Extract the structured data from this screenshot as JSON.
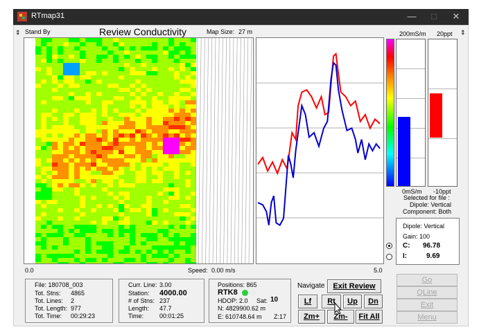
{
  "window": {
    "title": "RTmap31",
    "minimize": "—",
    "maximize": "□",
    "close": "✕"
  },
  "header": {
    "status": "Stand By",
    "view_title": "Review Conductivity",
    "map_size_label": "Map Size:",
    "map_size_value": "27 m"
  },
  "scale_bar": {
    "left": "0.0",
    "speed_label": "Speed:",
    "speed_value": "0.00 m/s",
    "right": "5.0"
  },
  "meters": {
    "conductivity_top": "200mS/m",
    "inphase_top": "20ppt",
    "conductivity_bottom": "0mS/m",
    "inphase_bottom": "-10ppt",
    "conductivity_level": 0.47,
    "inphase_level_top": 0.63,
    "inphase_level_bottom": 0.33,
    "conductivity_bar_color": "#0000ff",
    "inphase_bar_color": "#ff0000"
  },
  "selection": {
    "line1": "Selected for file :",
    "line2": "Dipole: Vertical",
    "line3": "Component: Both"
  },
  "readout": {
    "dipole": "Dipole: Vertical",
    "gain": "Gain:  100",
    "c_label": "C:",
    "c_value": "96.78",
    "i_label": "I:",
    "i_value": "9.69"
  },
  "file_info": {
    "file": "File: 180708_003",
    "stns_label": "Tot. Stns:",
    "stns_value": "4865",
    "lines_label": "Tot. Lines:",
    "lines_value": "2",
    "length_label": "Tot. Length:",
    "length_value": "977",
    "time_label": "Tot. Time:",
    "time_value": "00:29:23"
  },
  "line_info": {
    "curr_label": "Curr. Line:",
    "curr_value": "3.00",
    "station_label": "Station:",
    "station_value": "4000.00",
    "nstns_label": "# of Stns:",
    "nstns_value": "237",
    "length_label": "Length:",
    "length_value": "47.7",
    "time_label": "Time:",
    "time_value": "00:01:25"
  },
  "gps_info": {
    "positions": "Positions: 865",
    "rtk": "RTK8",
    "hdop": "HDOP: 2.0",
    "sat_label": "Sat:",
    "sat_value": "10",
    "north": "N:  4829900.62 m",
    "east": "E:   610748.64 m",
    "zone": "Z:17",
    "rtk_color": "#2ecc40"
  },
  "navigate": {
    "label": "Navigate",
    "exit_review": "Exit Review",
    "lf": "Lf",
    "rt": "Rt",
    "up": "Up",
    "dn": "Dn",
    "zm_plus": "Zm+",
    "zm_minus": "Zm-",
    "fit_all": "Fit All"
  },
  "actions": {
    "go": "Go",
    "qline": "QLine",
    "exit": "Exit",
    "menu": "Menu"
  },
  "profile": {
    "red_color": "#ff0000",
    "blue_color": "#0000cc",
    "red": [
      [
        0,
        0.44
      ],
      [
        0.04,
        0.47
      ],
      [
        0.08,
        0.41
      ],
      [
        0.12,
        0.45
      ],
      [
        0.16,
        0.4
      ],
      [
        0.2,
        0.46
      ],
      [
        0.24,
        0.42
      ],
      [
        0.28,
        0.58
      ],
      [
        0.31,
        0.55
      ],
      [
        0.33,
        0.7
      ],
      [
        0.36,
        0.76
      ],
      [
        0.4,
        0.77
      ],
      [
        0.44,
        0.74
      ],
      [
        0.48,
        0.69
      ],
      [
        0.52,
        0.74
      ],
      [
        0.55,
        0.66
      ],
      [
        0.58,
        0.67
      ],
      [
        0.6,
        0.8
      ],
      [
        0.62,
        0.92
      ],
      [
        0.64,
        0.93
      ],
      [
        0.66,
        0.84
      ],
      [
        0.68,
        0.76
      ],
      [
        0.72,
        0.74
      ],
      [
        0.76,
        0.7
      ],
      [
        0.8,
        0.72
      ],
      [
        0.84,
        0.63
      ],
      [
        0.88,
        0.66
      ],
      [
        0.92,
        0.6
      ],
      [
        0.96,
        0.64
      ],
      [
        1.0,
        0.62
      ]
    ],
    "blue": [
      [
        0,
        0.27
      ],
      [
        0.04,
        0.26
      ],
      [
        0.07,
        0.23
      ],
      [
        0.09,
        0.17
      ],
      [
        0.11,
        0.27
      ],
      [
        0.13,
        0.3
      ],
      [
        0.15,
        0.18
      ],
      [
        0.18,
        0.17
      ],
      [
        0.21,
        0.2
      ],
      [
        0.23,
        0.34
      ],
      [
        0.25,
        0.48
      ],
      [
        0.27,
        0.44
      ],
      [
        0.29,
        0.38
      ],
      [
        0.31,
        0.5
      ],
      [
        0.33,
        0.58
      ],
      [
        0.36,
        0.7
      ],
      [
        0.39,
        0.66
      ],
      [
        0.42,
        0.56
      ],
      [
        0.46,
        0.58
      ],
      [
        0.5,
        0.52
      ],
      [
        0.54,
        0.6
      ],
      [
        0.57,
        0.63
      ],
      [
        0.6,
        0.82
      ],
      [
        0.62,
        0.89
      ],
      [
        0.64,
        0.88
      ],
      [
        0.66,
        0.77
      ],
      [
        0.69,
        0.68
      ],
      [
        0.73,
        0.59
      ],
      [
        0.77,
        0.6
      ],
      [
        0.8,
        0.55
      ],
      [
        0.82,
        0.49
      ],
      [
        0.85,
        0.55
      ],
      [
        0.88,
        0.46
      ],
      [
        0.91,
        0.53
      ],
      [
        0.94,
        0.5
      ],
      [
        0.97,
        0.53
      ],
      [
        1.0,
        0.51
      ]
    ]
  }
}
